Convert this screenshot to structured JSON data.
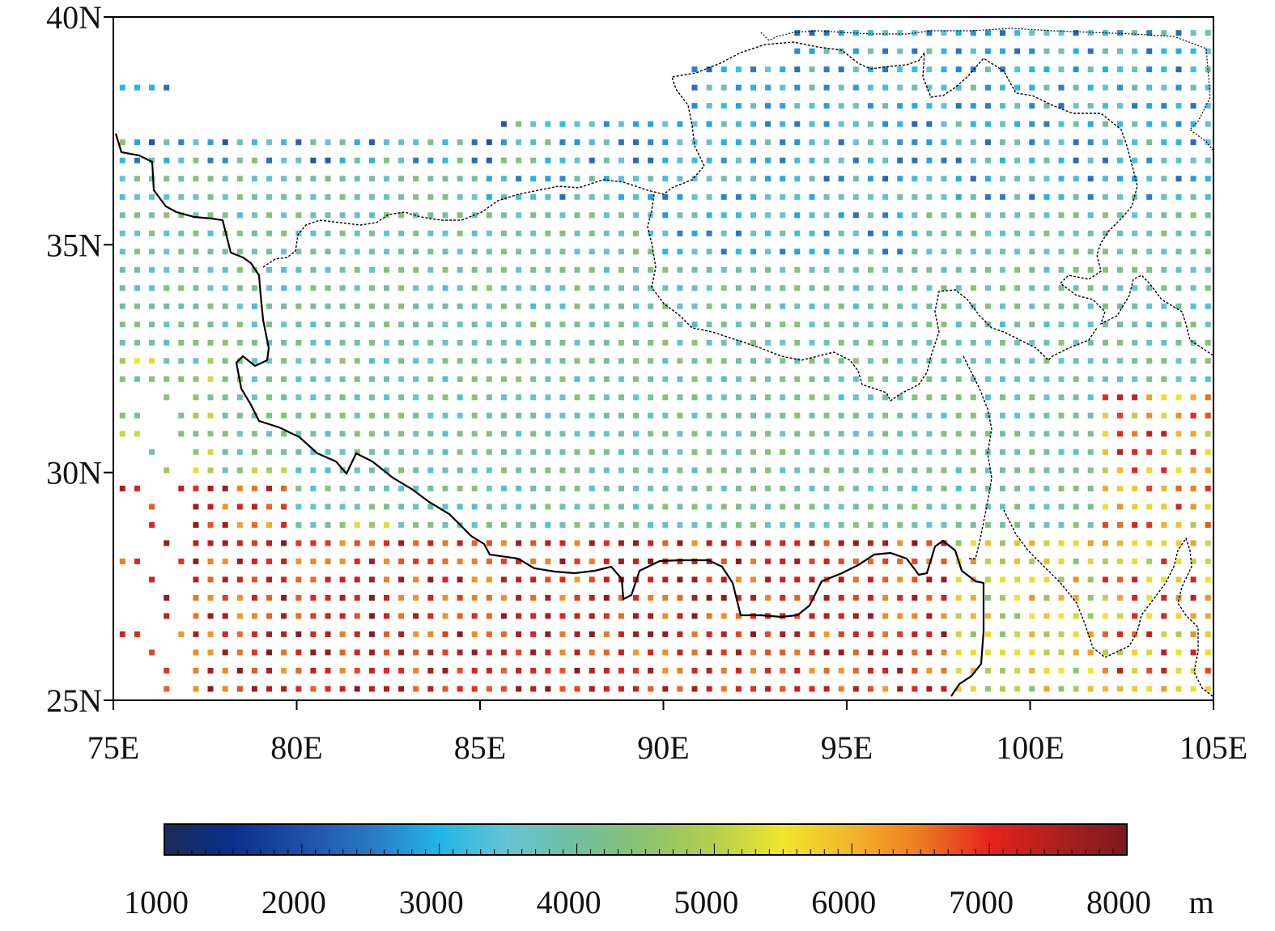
{
  "map": {
    "lon_range": [
      75,
      105
    ],
    "lat_range": [
      25,
      40
    ],
    "x_tick_labels": [
      "75E",
      "80E",
      "85E",
      "90E",
      "95E",
      "100E",
      "105E"
    ],
    "x_tick_values": [
      75,
      80,
      85,
      90,
      95,
      100,
      105
    ],
    "y_tick_labels": [
      "25N",
      "30N",
      "35N",
      "40N"
    ],
    "y_tick_values": [
      25,
      30,
      35,
      40
    ],
    "grid_step_deg": 0.5,
    "field": "gridded cell values on a 0.5 degree lattice, colored by the colorbar",
    "colors": {
      "frame": "#000000",
      "boundary": "#000000"
    }
  },
  "colorbar": {
    "min": 1000,
    "max": 8000,
    "tick_values": [
      1000,
      2000,
      3000,
      4000,
      5000,
      6000,
      7000,
      8000
    ],
    "tick_labels": [
      "1000",
      "2000",
      "3000",
      "4000",
      "5000",
      "6000",
      "7000",
      "8000"
    ],
    "unit": "m",
    "stops": [
      {
        "value": 1000,
        "color": "#1c2a5a"
      },
      {
        "value": 1500,
        "color": "#0a2f8c"
      },
      {
        "value": 2000,
        "color": "#1f4fa8"
      },
      {
        "value": 2500,
        "color": "#2a78c4"
      },
      {
        "value": 3000,
        "color": "#22b6e8"
      },
      {
        "value": 3500,
        "color": "#66c4d4"
      },
      {
        "value": 4000,
        "color": "#72bfa0"
      },
      {
        "value": 4500,
        "color": "#8dc26e"
      },
      {
        "value": 5000,
        "color": "#b4cf4e"
      },
      {
        "value": 5500,
        "color": "#f0e62c"
      },
      {
        "value": 6000,
        "color": "#f3b52a"
      },
      {
        "value": 6500,
        "color": "#ee7b22"
      },
      {
        "value": 7000,
        "color": "#e5231d"
      },
      {
        "value": 8000,
        "color": "#7a1a1e"
      }
    ]
  }
}
